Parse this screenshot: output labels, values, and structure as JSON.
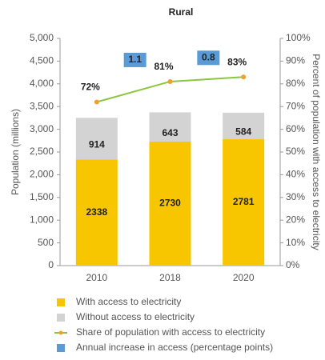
{
  "chart_data": {
    "type": "bar",
    "stacked": true,
    "title": "Rural",
    "ylabel": "Population (millions)",
    "y2label": "Percent of population with access to electricity",
    "categories": [
      "2010",
      "2018",
      "2020"
    ],
    "ylim": [
      0,
      5000
    ],
    "yticks": [
      0,
      500,
      {
        "value": 1000,
        "label": "1,000"
      },
      {
        "value": 1500,
        "label": "1,500"
      },
      {
        "value": 2000,
        "label": "2,000"
      },
      {
        "value": 2500,
        "label": "2,500"
      },
      {
        "value": 3000,
        "label": "3,000"
      },
      {
        "value": 3500,
        "label": "3,500"
      },
      {
        "value": 4000,
        "label": "4,000"
      },
      {
        "value": 4500,
        "label": "4,500"
      },
      {
        "value": 5000,
        "label": "5,000"
      }
    ],
    "y2lim": [
      0,
      100
    ],
    "y2ticks": [
      {
        "value": 0,
        "label": "0%"
      },
      {
        "value": 10,
        "label": "10%"
      },
      {
        "value": 20,
        "label": "20%"
      },
      {
        "value": 30,
        "label": "30%"
      },
      {
        "value": 40,
        "label": "40%"
      },
      {
        "value": 50,
        "label": "50%"
      },
      {
        "value": 60,
        "label": "60%"
      },
      {
        "value": 70,
        "label": "70%"
      },
      {
        "value": 80,
        "label": "80%"
      },
      {
        "value": 90,
        "label": "90%"
      },
      {
        "value": 100,
        "label": "100%"
      }
    ],
    "grid": false,
    "series": [
      {
        "name": "With access to electricity",
        "type": "bar",
        "color": "#f7c600",
        "values": [
          2338,
          2730,
          2781
        ]
      },
      {
        "name": "Without access to electricity",
        "type": "bar",
        "color": "#d3d3d3",
        "values": [
          914,
          643,
          584
        ]
      },
      {
        "name": "Share of population with access to electricity",
        "type": "line",
        "axis": "y2",
        "color": "#8cc63f",
        "marker_color": "#f0a030",
        "values": [
          72,
          81,
          83
        ],
        "value_labels": [
          "72%",
          "81%",
          "83%"
        ]
      },
      {
        "name": "Annual increase in access (percentage points)",
        "type": "annotation",
        "color": "#5b9bd5",
        "values": [
          null,
          1.1,
          0.8
        ]
      }
    ]
  }
}
